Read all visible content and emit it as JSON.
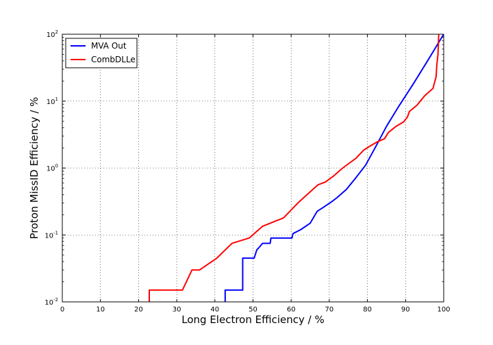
{
  "chart_data": {
    "type": "line",
    "title": "",
    "xlabel": "Long Electron Efficiency / %",
    "ylabel": "Proton MissID Efficiency / %",
    "xlim": [
      0,
      100
    ],
    "ylim": [
      0.01,
      100
    ],
    "y_scale": "log",
    "grid": true,
    "legend_position": "top-left",
    "x_ticks": [
      "0",
      "10",
      "20",
      "30",
      "40",
      "50",
      "60",
      "70",
      "80",
      "90",
      "100"
    ],
    "y_ticks": [
      {
        "base": "10",
        "exp": "-2"
      },
      {
        "base": "10",
        "exp": "-1"
      },
      {
        "base": "10",
        "exp": "0"
      },
      {
        "base": "10",
        "exp": "1"
      },
      {
        "base": "10",
        "exp": "2"
      }
    ],
    "series": [
      {
        "name": "MVA Out",
        "color": "#0000ff",
        "points": [
          [
            42.7,
            0.01
          ],
          [
            42.7,
            0.015
          ],
          [
            47.3,
            0.015
          ],
          [
            47.3,
            0.045
          ],
          [
            50.3,
            0.045
          ],
          [
            51.0,
            0.06
          ],
          [
            51.6,
            0.065
          ],
          [
            52.5,
            0.075
          ],
          [
            54.5,
            0.075
          ],
          [
            54.7,
            0.09
          ],
          [
            60.2,
            0.09
          ],
          [
            60.5,
            0.105
          ],
          [
            62.5,
            0.12
          ],
          [
            65.0,
            0.15
          ],
          [
            66.8,
            0.225
          ],
          [
            68.5,
            0.26
          ],
          [
            70.5,
            0.31
          ],
          [
            72.0,
            0.36
          ],
          [
            74.5,
            0.48
          ],
          [
            77.0,
            0.72
          ],
          [
            79.5,
            1.1
          ],
          [
            82.0,
            2.0
          ],
          [
            85.0,
            4.2
          ],
          [
            88.0,
            8.0
          ],
          [
            92.0,
            18.0
          ],
          [
            96.0,
            42.0
          ],
          [
            100.0,
            100.0
          ]
        ]
      },
      {
        "name": "CombDLLe",
        "color": "#ff0000",
        "points": [
          [
            22.8,
            0.01
          ],
          [
            22.8,
            0.015
          ],
          [
            31.5,
            0.015
          ],
          [
            34.0,
            0.03
          ],
          [
            36.0,
            0.03
          ],
          [
            40.5,
            0.045
          ],
          [
            44.5,
            0.075
          ],
          [
            49.0,
            0.09
          ],
          [
            52.5,
            0.135
          ],
          [
            58.0,
            0.18
          ],
          [
            62.0,
            0.31
          ],
          [
            67.0,
            0.56
          ],
          [
            69.0,
            0.62
          ],
          [
            71.0,
            0.75
          ],
          [
            73.5,
            1.0
          ],
          [
            77.0,
            1.4
          ],
          [
            79.0,
            1.85
          ],
          [
            80.5,
            2.1
          ],
          [
            82.5,
            2.45
          ],
          [
            84.5,
            2.75
          ],
          [
            85.5,
            3.4
          ],
          [
            87.5,
            4.2
          ],
          [
            89.5,
            4.9
          ],
          [
            90.5,
            5.8
          ],
          [
            91.0,
            7.0
          ],
          [
            93.0,
            8.7
          ],
          [
            95.0,
            12.0
          ],
          [
            96.3,
            14.0
          ],
          [
            97.2,
            15.5
          ],
          [
            97.6,
            19.0
          ],
          [
            98.0,
            23.0
          ],
          [
            98.2,
            35.0
          ],
          [
            98.5,
            50.0
          ],
          [
            98.6,
            70.0
          ],
          [
            98.7,
            100.0
          ]
        ]
      }
    ]
  }
}
